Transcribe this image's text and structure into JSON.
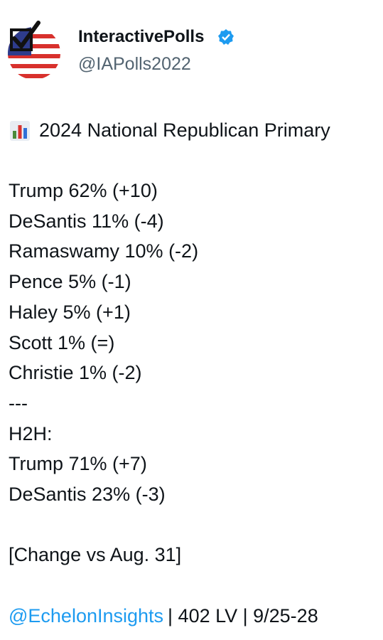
{
  "header": {
    "name": "InteractivePolls",
    "handle": "@IAPolls2022"
  },
  "post": {
    "title": "2024 National Republican Primary",
    "primary": [
      "Trump 62% (+10)",
      "DeSantis 11% (-4)",
      "Ramaswamy 10% (-2)",
      "Pence 5% (-1)",
      "Haley 5% (+1)",
      "Scott 1% (=)",
      "Christie 1% (-2)"
    ],
    "separator": "---",
    "h2h_label": "H2H:",
    "h2h": [
      "Trump 71% (+7)",
      "DeSantis 23% (-3)"
    ],
    "note": "[Change vs Aug. 31]",
    "footer": {
      "mention": "@EchelonInsights",
      "rest": "| 402 LV | 9/25-28"
    }
  }
}
